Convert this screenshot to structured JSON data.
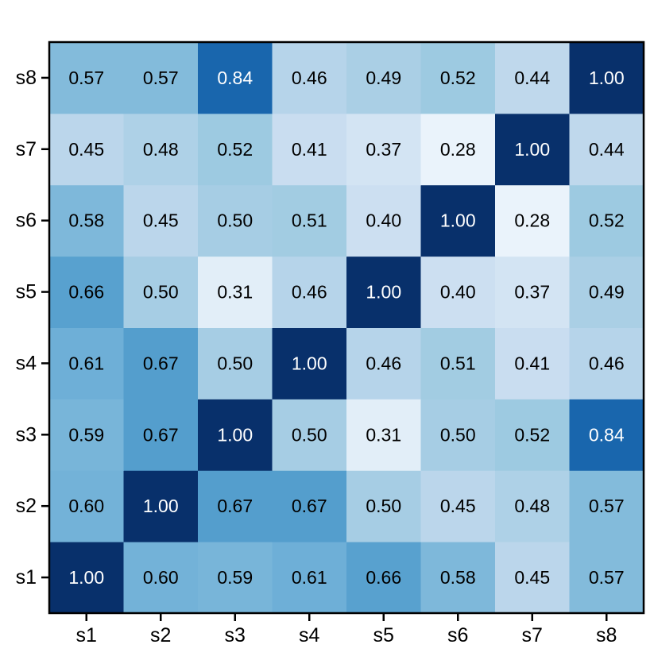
{
  "chart_data": {
    "type": "heatmap",
    "title": "",
    "xlabel": "",
    "ylabel": "",
    "x_categories": [
      "s1",
      "s2",
      "s3",
      "s4",
      "s5",
      "s6",
      "s7",
      "s8"
    ],
    "y_categories": [
      "s1",
      "s2",
      "s3",
      "s4",
      "s5",
      "s6",
      "s7",
      "s8"
    ],
    "y_order": "bottom-to-top",
    "colormap": "Blues",
    "value_format": "0.00",
    "values": [
      [
        1.0,
        0.6,
        0.59,
        0.61,
        0.66,
        0.58,
        0.45,
        0.57
      ],
      [
        0.6,
        1.0,
        0.67,
        0.67,
        0.5,
        0.45,
        0.48,
        0.57
      ],
      [
        0.59,
        0.67,
        1.0,
        0.5,
        0.31,
        0.5,
        0.52,
        0.84
      ],
      [
        0.61,
        0.67,
        0.5,
        1.0,
        0.46,
        0.51,
        0.41,
        0.46
      ],
      [
        0.66,
        0.5,
        0.31,
        0.46,
        1.0,
        0.4,
        0.37,
        0.49
      ],
      [
        0.58,
        0.45,
        0.5,
        0.51,
        0.4,
        1.0,
        0.28,
        0.52
      ],
      [
        0.45,
        0.48,
        0.52,
        0.41,
        0.37,
        0.28,
        1.0,
        0.44
      ],
      [
        0.57,
        0.57,
        0.84,
        0.46,
        0.49,
        0.52,
        0.44,
        1.0
      ]
    ],
    "grid": false,
    "legend": "none"
  }
}
